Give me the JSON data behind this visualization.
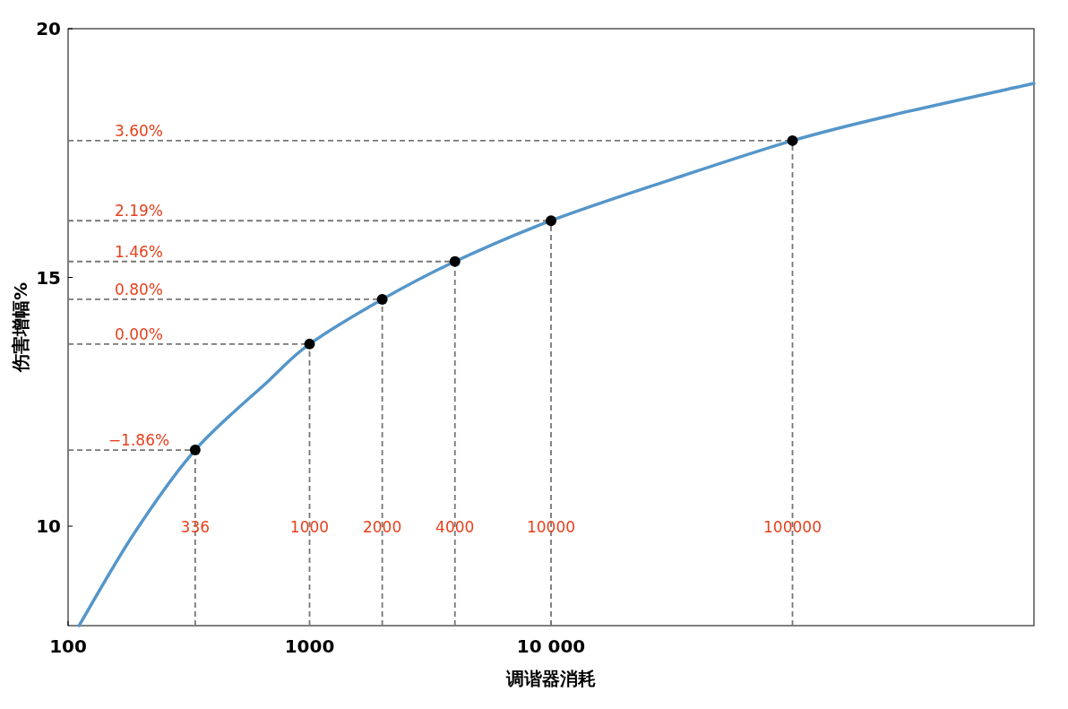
{
  "chart_data": {
    "type": "line",
    "xlabel": "调谐器消耗",
    "ylabel": "伤害增幅%",
    "log": "x",
    "xlim": [
      100,
      1000000
    ],
    "ylim": [
      8,
      20
    ],
    "xticks": [
      100,
      1000,
      {
        "value": 10000,
        "label": "10 000"
      }
    ],
    "yticks": [
      10,
      15,
      20
    ],
    "series": [
      {
        "color": "#5596c9",
        "x": [
          111,
          188,
          336,
          676,
          1000,
          2000,
          4000,
          10000,
          31623,
          100000,
          263000,
          1000000
        ],
        "values": [
          8,
          9.86,
          11.53,
          12.92,
          13.66,
          14.56,
          15.32,
          16.14,
          16.97,
          17.75,
          18.27,
          18.9
        ]
      },
      {
        "type": "scatter",
        "color": "#000000",
        "marker": "circle",
        "x": [
          336,
          1000,
          2000,
          4000,
          10000,
          100000
        ],
        "values": [
          11.53,
          13.66,
          14.56,
          15.32,
          16.14,
          17.75
        ]
      }
    ],
    "ref_lines": [
      {
        "axis": "y",
        "value": 11.53,
        "color": "#777777",
        "line_style": "dashed"
      },
      {
        "axis": "y",
        "value": 13.66,
        "color": "#777777",
        "line_style": "dashed"
      },
      {
        "axis": "y",
        "value": 14.56,
        "color": "#777777",
        "line_style": "dashed"
      },
      {
        "axis": "y",
        "value": 15.32,
        "color": "#777777",
        "line_style": "dashed"
      },
      {
        "axis": "y",
        "value": 16.14,
        "color": "#777777",
        "line_style": "dashed"
      },
      {
        "axis": "y",
        "value": 17.75,
        "color": "#777777",
        "line_style": "dashed"
      },
      {
        "axis": "x",
        "value": 336,
        "label": "336",
        "color": "#777777",
        "line_style": "dashed"
      },
      {
        "axis": "x",
        "value": 1000,
        "label": "1000",
        "color": "#777777",
        "line_style": "dashed"
      },
      {
        "axis": "x",
        "value": 2000,
        "label": "2000",
        "color": "#777777",
        "line_style": "dashed"
      },
      {
        "axis": "x",
        "value": 4000,
        "label": "4000",
        "color": "#777777",
        "line_style": "dashed"
      },
      {
        "axis": "x",
        "value": 10000,
        "label": "10000",
        "color": "#777777",
        "line_style": "dashed"
      },
      {
        "axis": "x",
        "value": 100000,
        "label": "100000",
        "color": "#777777",
        "line_style": "dashed"
      }
    ],
    "annotations": [
      "−1.86%",
      "0.00%",
      "0.80%",
      "1.46%",
      "2.19%",
      "3.60%"
    ]
  }
}
